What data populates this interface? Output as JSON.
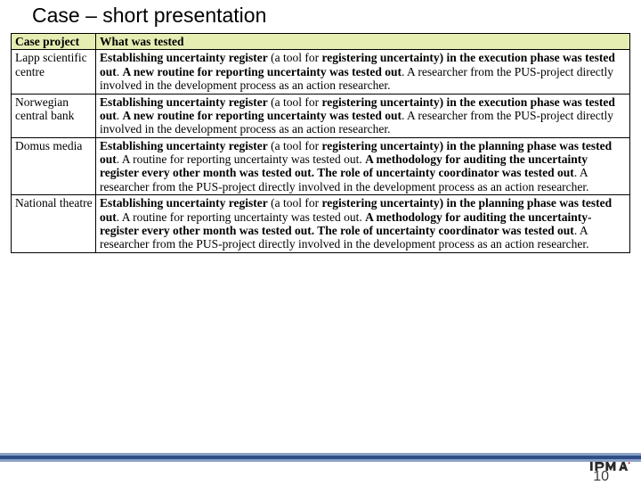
{
  "slide": {
    "title": "Case – short presentation",
    "page_number": "10"
  },
  "table": {
    "headers": {
      "col0": "Case project",
      "col1": "What was tested"
    },
    "rows": [
      {
        "project": "Lapp scientific centre",
        "segments": [
          {
            "t": "Establishing uncertainty register",
            "b": true
          },
          {
            "t": " (a tool for ",
            "b": false
          },
          {
            "t": "registering uncertainty) in the execution phase was tested out",
            "b": true
          },
          {
            "t": ". ",
            "b": false
          },
          {
            "t": "A new routine for reporting uncertainty was tested out",
            "b": true
          },
          {
            "t": ". A researcher from the PUS-project directly involved in the development process as an action researcher.",
            "b": false
          }
        ]
      },
      {
        "project": "Norwegian central bank",
        "segments": [
          {
            "t": "Establishing uncertainty register",
            "b": true
          },
          {
            "t": " (a tool for ",
            "b": false
          },
          {
            "t": "registering uncertainty) in the execution phase was tested out",
            "b": true
          },
          {
            "t": ". ",
            "b": false
          },
          {
            "t": "A new routine for reporting uncertainty was tested out",
            "b": true
          },
          {
            "t": ". A researcher from the PUS-project directly involved in the development process as an action researcher.",
            "b": false
          }
        ]
      },
      {
        "project": "Domus media",
        "segments": [
          {
            "t": "Establishing uncertainty register",
            "b": true
          },
          {
            "t": " (a tool for ",
            "b": false
          },
          {
            "t": "registering uncertainty) in the planning phase was tested out",
            "b": true
          },
          {
            "t": ". A routine for reporting uncertainty was tested out. ",
            "b": false
          },
          {
            "t": "A methodology for auditing the uncertainty register every other month was tested out. The role of uncertainty coordinator was tested out",
            "b": true
          },
          {
            "t": ". A researcher from the PUS-project directly involved in the development process as an action researcher.",
            "b": false
          }
        ]
      },
      {
        "project": "National theatre",
        "segments": [
          {
            "t": "Establishing uncertainty register",
            "b": true
          },
          {
            "t": " (a tool for ",
            "b": false
          },
          {
            "t": "registering uncertainty) in the planning phase was tested out",
            "b": true
          },
          {
            "t": ". A routine for reporting uncertainty was tested out. ",
            "b": false
          },
          {
            "t": "A methodology for auditing the uncertainty-register every other month was tested out. The role of uncertainty coordinator was tested out",
            "b": true
          },
          {
            "t": ". A researcher from the PUS-project directly involved in the development process as an action researcher.",
            "b": false
          }
        ]
      }
    ]
  },
  "style": {
    "header_bg": "#e5edb2",
    "border_color": "#000000",
    "title_fontsize": 23,
    "cell_fontsize": 13.5,
    "band_light": "#8aa1c7",
    "band_dark": "#2f4e88",
    "logo_fill": "#2a2a2a"
  }
}
